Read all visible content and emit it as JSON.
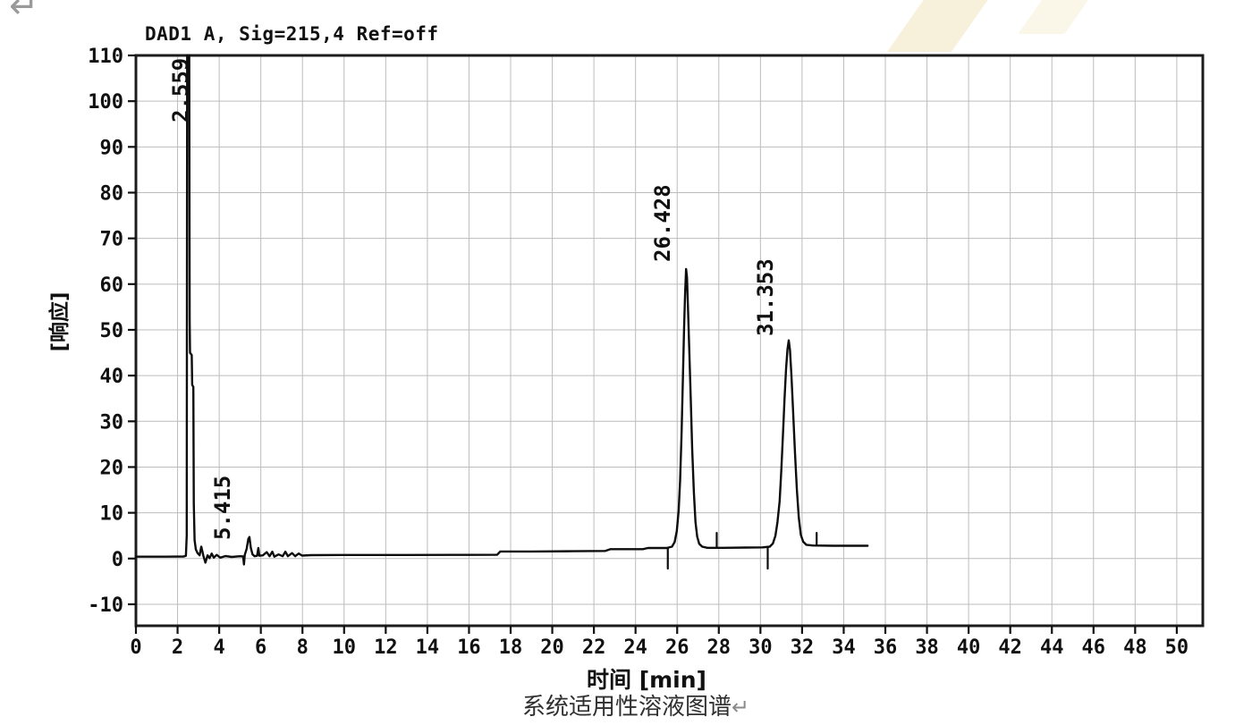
{
  "artifacts": {
    "page_return_mark": "↵",
    "caption_return_mark": "↵",
    "watermark_color": "#f7f1dc"
  },
  "chart_data": {
    "type": "line",
    "title": "DAD1 A, Sig=215,4 Ref=off",
    "xlabel": "时间 [min]",
    "ylabel": "[响应]",
    "caption": "系统适用性溶液图谱",
    "xlim": [
      0,
      51.25
    ],
    "ylim": [
      -14.7,
      110
    ],
    "x_ticks": [
      0,
      2,
      4,
      6,
      8,
      10,
      12,
      14,
      16,
      18,
      20,
      22,
      24,
      26,
      28,
      30,
      32,
      34,
      36,
      38,
      40,
      42,
      44,
      46,
      48,
      50
    ],
    "y_ticks": [
      -10,
      0,
      10,
      20,
      30,
      40,
      50,
      60,
      70,
      80,
      90,
      100,
      110
    ],
    "grid": true,
    "peaks": [
      {
        "label": "2.559",
        "rt": 2.559,
        "height": "clipped (>110)"
      },
      {
        "label": "5.415",
        "rt": 5.415,
        "height": 4.7
      },
      {
        "label": "26.428",
        "rt": 26.428,
        "height": 63.3
      },
      {
        "label": "31.353",
        "rt": 31.353,
        "height": 47.7
      }
    ],
    "trace": [
      [
        0,
        0.4
      ],
      [
        1.5,
        0.4
      ],
      [
        2.3,
        0.45
      ],
      [
        2.4,
        0.6
      ],
      [
        2.44,
        5
      ],
      [
        2.46,
        110
      ],
      [
        2.56,
        110
      ],
      [
        2.58,
        52
      ],
      [
        2.6,
        45
      ],
      [
        2.68,
        44.5
      ],
      [
        2.7,
        38
      ],
      [
        2.76,
        37.5
      ],
      [
        2.78,
        12
      ],
      [
        2.82,
        4
      ],
      [
        2.88,
        2
      ],
      [
        2.96,
        1.2
      ],
      [
        3.06,
        0.7
      ],
      [
        3.14,
        2.6
      ],
      [
        3.24,
        0.6
      ],
      [
        3.34,
        -0.9
      ],
      [
        3.44,
        0.7
      ],
      [
        3.54,
        0.1
      ],
      [
        3.64,
        1.1
      ],
      [
        3.74,
        0.2
      ],
      [
        3.88,
        0.8
      ],
      [
        4.05,
        0.2
      ],
      [
        4.3,
        0.55
      ],
      [
        4.6,
        0.35
      ],
      [
        5.0,
        0.5
      ],
      [
        5.15,
        0.45
      ],
      [
        5.19,
        -1.3
      ],
      [
        5.23,
        0.8
      ],
      [
        5.32,
        2.1
      ],
      [
        5.4,
        4.3
      ],
      [
        5.45,
        4.7
      ],
      [
        5.52,
        2.3
      ],
      [
        5.6,
        0.9
      ],
      [
        5.7,
        0.5
      ],
      [
        5.82,
        0.6
      ],
      [
        5.88,
        2.3
      ],
      [
        5.93,
        0.6
      ],
      [
        6.1,
        0.7
      ],
      [
        6.28,
        1.4
      ],
      [
        6.42,
        0.5
      ],
      [
        6.55,
        1.5
      ],
      [
        6.65,
        0.4
      ],
      [
        6.85,
        0.9
      ],
      [
        7.05,
        0.5
      ],
      [
        7.18,
        1.5
      ],
      [
        7.3,
        0.5
      ],
      [
        7.5,
        1.2
      ],
      [
        7.65,
        0.5
      ],
      [
        7.82,
        1.1
      ],
      [
        7.98,
        0.65
      ],
      [
        8.4,
        0.75
      ],
      [
        10,
        0.78
      ],
      [
        13,
        0.78
      ],
      [
        16,
        0.8
      ],
      [
        17.35,
        0.82
      ],
      [
        17.5,
        1.55
      ],
      [
        19,
        1.55
      ],
      [
        21,
        1.6
      ],
      [
        22.55,
        1.65
      ],
      [
        22.8,
        2.05
      ],
      [
        24.35,
        2.05
      ],
      [
        24.6,
        2.3
      ],
      [
        25.5,
        2.3
      ],
      [
        25.75,
        2.6
      ],
      [
        25.88,
        3.6
      ],
      [
        25.98,
        6
      ],
      [
        26.07,
        10.5
      ],
      [
        26.14,
        17
      ],
      [
        26.21,
        27
      ],
      [
        26.28,
        40
      ],
      [
        26.33,
        50
      ],
      [
        26.38,
        58
      ],
      [
        26.43,
        63.3
      ],
      [
        26.47,
        61.5
      ],
      [
        26.52,
        55
      ],
      [
        26.58,
        46
      ],
      [
        26.65,
        35
      ],
      [
        26.72,
        24
      ],
      [
        26.8,
        14.5
      ],
      [
        26.88,
        8
      ],
      [
        26.96,
        4.8
      ],
      [
        27.06,
        3.2
      ],
      [
        27.2,
        2.6
      ],
      [
        27.45,
        2.35
      ],
      [
        28.2,
        2.35
      ],
      [
        29.3,
        2.4
      ],
      [
        30.1,
        2.45
      ],
      [
        30.45,
        2.6
      ],
      [
        30.6,
        3.3
      ],
      [
        30.72,
        5
      ],
      [
        30.82,
        8
      ],
      [
        30.92,
        12.5
      ],
      [
        31.0,
        19
      ],
      [
        31.08,
        27
      ],
      [
        31.16,
        35
      ],
      [
        31.23,
        41.5
      ],
      [
        31.3,
        45.8
      ],
      [
        31.36,
        47.7
      ],
      [
        31.42,
        45.5
      ],
      [
        31.49,
        40
      ],
      [
        31.57,
        32
      ],
      [
        31.66,
        23
      ],
      [
        31.75,
        15
      ],
      [
        31.84,
        9
      ],
      [
        31.94,
        5.2
      ],
      [
        32.05,
        3.7
      ],
      [
        32.2,
        3.0
      ],
      [
        32.5,
        2.85
      ],
      [
        33.5,
        2.8
      ],
      [
        34.5,
        2.8
      ],
      [
        35.15,
        2.8
      ]
    ],
    "integration_marks": [
      {
        "t": 25.55,
        "from": 2.3,
        "to": -2.2
      },
      {
        "t": 27.9,
        "from": 2.35,
        "to": 5.6
      },
      {
        "t": 30.35,
        "from": 2.45,
        "to": -2.2
      },
      {
        "t": 32.7,
        "from": 2.85,
        "to": 5.6
      }
    ]
  }
}
